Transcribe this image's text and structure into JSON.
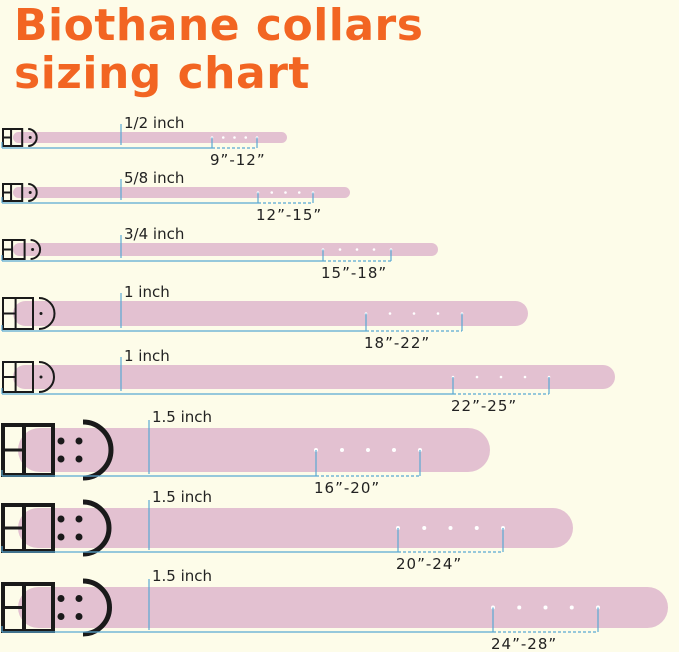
{
  "title_line1": "Biothane collars",
  "title_line2": "sizing chart",
  "colors": {
    "title": "#f26522",
    "strap": "#e3c1d1",
    "measure_line": "#5aa9d3",
    "hardware": "#1a1a1a",
    "background": "#fdfce9"
  },
  "collars": [
    {
      "width": "1/2 inch",
      "range": "9”-12”"
    },
    {
      "width": "5/8 inch",
      "range": "12”-15”"
    },
    {
      "width": "3/4 inch",
      "range": "15”-18”"
    },
    {
      "width": "1 inch",
      "range": "18”-22”"
    },
    {
      "width": "1 inch",
      "range": "22”-25”"
    },
    {
      "width": "1.5 inch",
      "range": "16”-20”"
    },
    {
      "width": "1.5 inch",
      "range": "20”-24”"
    },
    {
      "width": "1.5 inch",
      "range": "24”-28”"
    }
  ]
}
